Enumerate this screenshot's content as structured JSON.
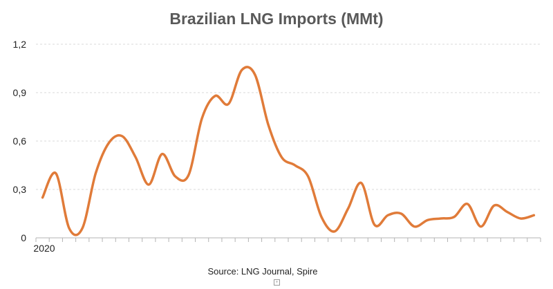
{
  "chart_data": {
    "type": "line",
    "title": "Brazilian LNG Imports (MMt)",
    "xlabel": "",
    "ylabel": "",
    "x_tick_label": "2020",
    "ylim": [
      0,
      1.2
    ],
    "yticks": [
      "0",
      "0,3",
      "0,6",
      "0,9",
      "1,2"
    ],
    "grid": true,
    "legend": "none",
    "series": [
      {
        "color": "#e07b39",
        "values": [
          0.25,
          0.4,
          0.06,
          0.06,
          0.4,
          0.59,
          0.63,
          0.5,
          0.33,
          0.52,
          0.38,
          0.39,
          0.74,
          0.88,
          0.83,
          1.04,
          1.01,
          0.7,
          0.5,
          0.45,
          0.38,
          0.13,
          0.04,
          0.18,
          0.34,
          0.08,
          0.14,
          0.15,
          0.07,
          0.11,
          0.12,
          0.13,
          0.21,
          0.07,
          0.2,
          0.16,
          0.12,
          0.14
        ]
      }
    ]
  },
  "source": "Source: LNG Journal, Spire",
  "corner_icon": "plus-box-icon"
}
